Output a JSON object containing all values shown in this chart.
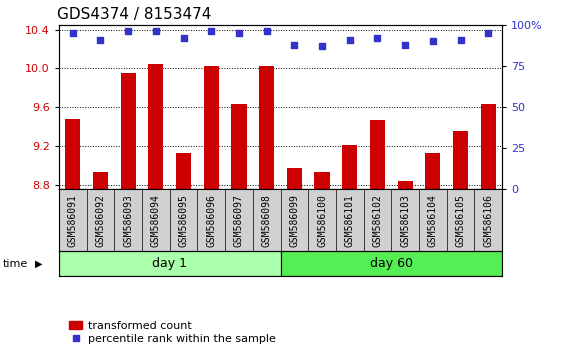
{
  "title": "GDS4374 / 8153474",
  "samples": [
    "GSM586091",
    "GSM586092",
    "GSM586093",
    "GSM586094",
    "GSM586095",
    "GSM586096",
    "GSM586097",
    "GSM586098",
    "GSM586099",
    "GSM586100",
    "GSM586101",
    "GSM586102",
    "GSM586103",
    "GSM586104",
    "GSM586105",
    "GSM586106"
  ],
  "bar_values": [
    9.48,
    8.93,
    9.95,
    10.05,
    9.13,
    10.02,
    9.63,
    10.02,
    8.97,
    8.93,
    9.21,
    9.47,
    8.84,
    9.13,
    9.35,
    9.63
  ],
  "percentile_values": [
    95,
    91,
    96,
    96,
    92,
    96,
    95,
    96,
    88,
    87,
    91,
    92,
    88,
    90,
    91,
    95
  ],
  "ylim_left": [
    8.75,
    10.45
  ],
  "ylim_right": [
    0,
    100
  ],
  "yticks_left": [
    8.8,
    9.2,
    9.6,
    10.0,
    10.4
  ],
  "yticks_right": [
    0,
    25,
    50,
    75,
    100
  ],
  "ytick_right_labels": [
    "0",
    "25",
    "50",
    "75",
    "100%"
  ],
  "bar_color": "#cc0000",
  "dot_color": "#3333cc",
  "grid_color": "#000000",
  "day1_color": "#aaffaa",
  "day60_color": "#55ee55",
  "tick_bg_color": "#d0d0d0",
  "day1_samples": 8,
  "day60_samples": 8,
  "day1_label": "day 1",
  "day60_label": "day 60",
  "time_label": "time",
  "legend_bar_label": "transformed count",
  "legend_dot_label": "percentile rank within the sample",
  "plot_bg_color": "#ffffff",
  "title_fontsize": 11,
  "tick_label_fontsize": 7,
  "sample_label_fontsize": 7,
  "day_label_fontsize": 9,
  "legend_fontsize": 8
}
